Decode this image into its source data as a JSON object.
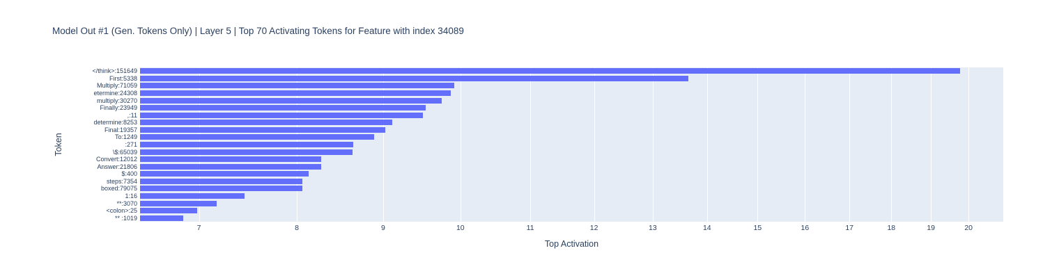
{
  "title": "Model Out #1 (Gen. Tokens Only) | Layer 5 | Top 70 Activating Tokens for Feature with index 34089",
  "colors": {
    "bar": "#636efa",
    "plot_background": "#e5ecf6",
    "gridline": "#ffffff",
    "text": "#2a3f5f"
  },
  "chart_data": {
    "type": "bar",
    "orientation": "horizontal",
    "title": "Model Out #1 (Gen. Tokens Only) | Layer 5 | Top 70 Activating Tokens for Feature with index 34089",
    "xlabel": "Top Activation",
    "ylabel": "Token",
    "x_scale": "log",
    "x_range": [
      6.46,
      20.97
    ],
    "x_ticks": [
      7,
      8,
      9,
      10,
      11,
      12,
      13,
      14,
      15,
      16,
      17,
      18,
      19,
      20
    ],
    "grid": true,
    "legend": false,
    "categories": [
      "</think>:151649",
      "First:5338",
      "Multiply:71059",
      "etermine:24308",
      "multiply:30270",
      "Finally:23949",
      ",:11",
      "determine:8253",
      "Final:19357",
      "To:1249",
      ":271",
      "\\$:65039",
      "Convert:12012",
      "Answer:21806",
      "$:400",
      "steps:7354",
      "boxed:79075",
      "1:16",
      "**:3070",
      "<colon>:25",
      "** :1019"
    ],
    "values": [
      19.77,
      13.65,
      9.92,
      9.87,
      9.75,
      9.54,
      9.5,
      9.11,
      9.03,
      8.89,
      8.64,
      8.63,
      8.27,
      8.27,
      8.13,
      8.06,
      8.06,
      7.45,
      7.17,
      6.98,
      6.85
    ]
  }
}
